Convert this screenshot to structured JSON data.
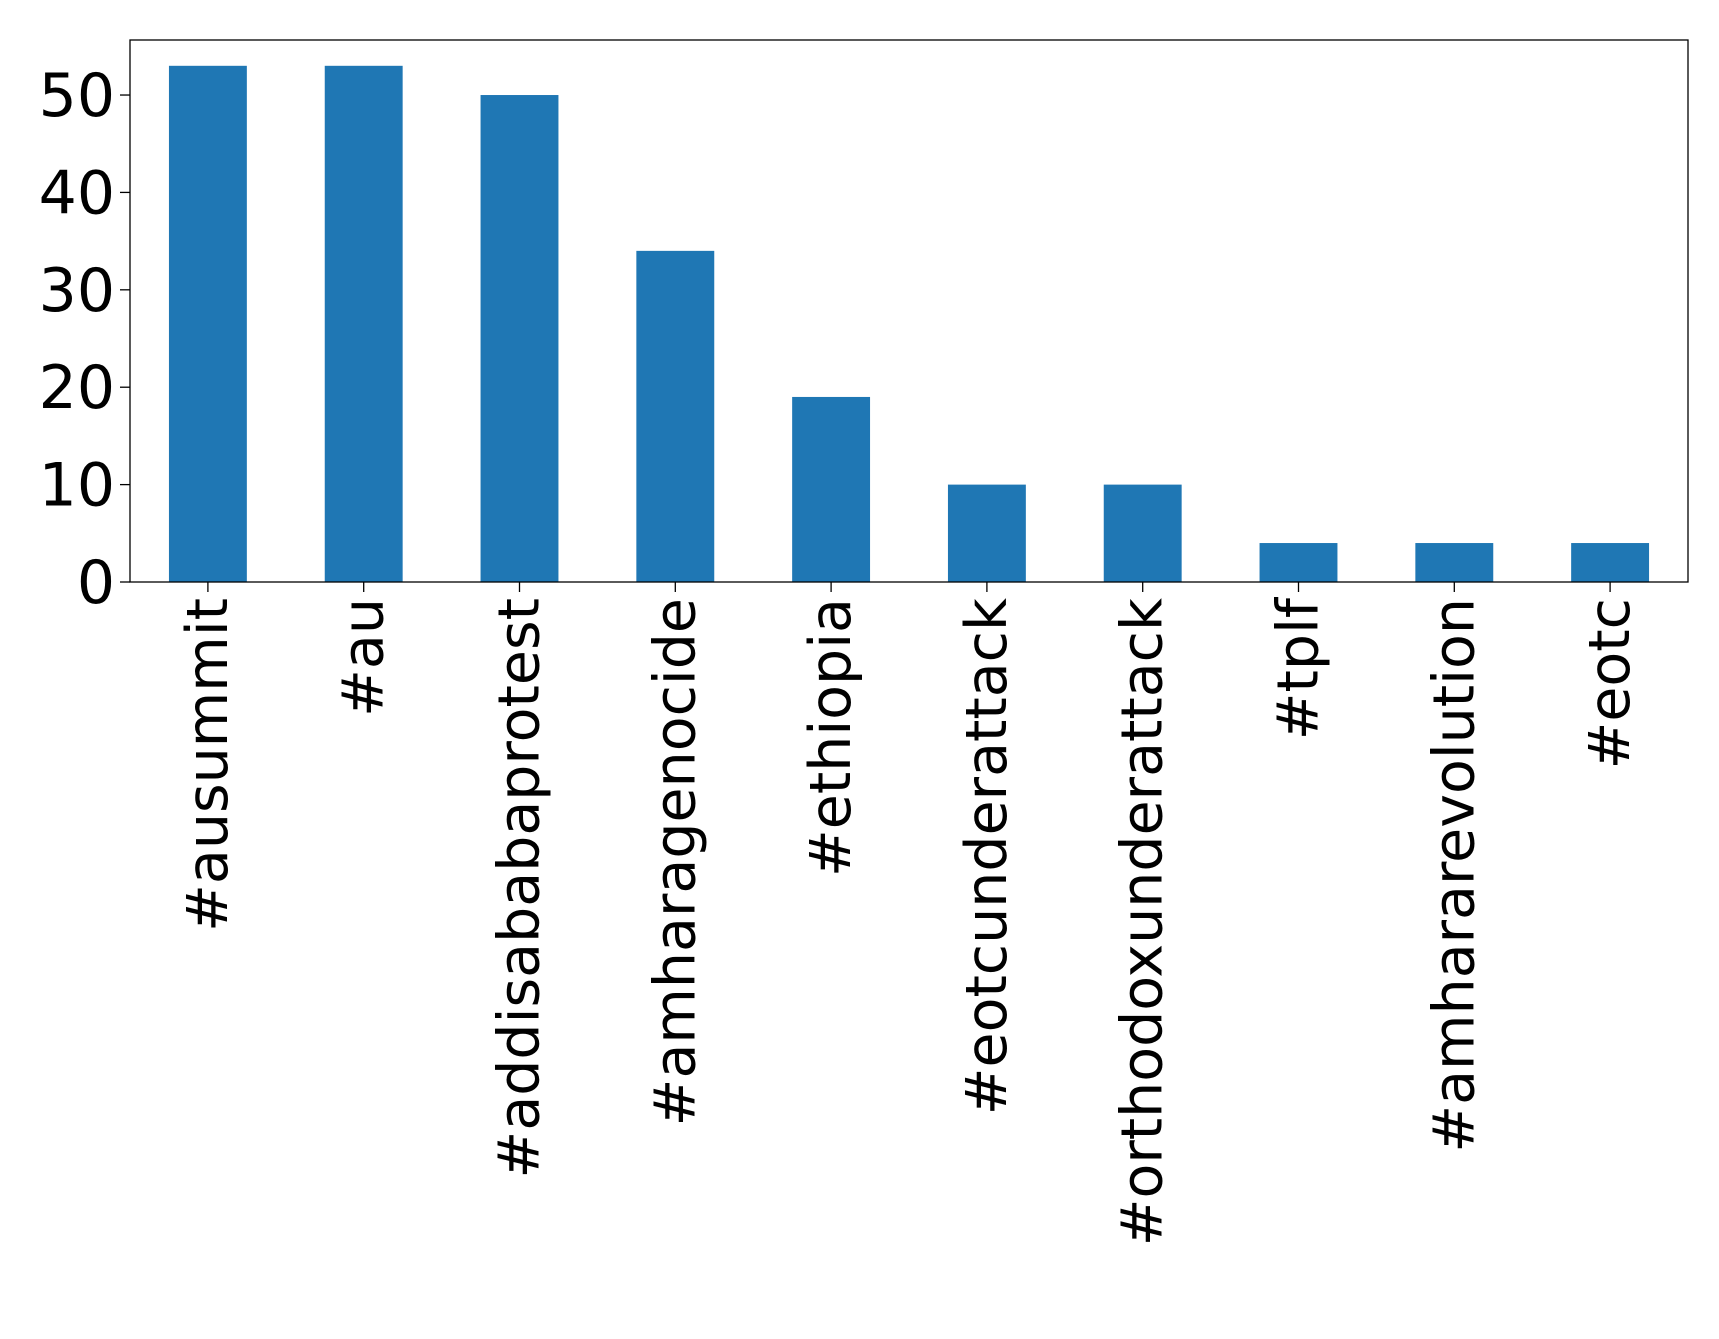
{
  "chart_data": {
    "type": "bar",
    "title": "",
    "xlabel": "",
    "ylabel": "",
    "categories": [
      "#ausummit",
      "#au",
      "#addisababaprotest",
      "#amharagenocide",
      "#ethiopia",
      "#eotcunderattack",
      "#orthodoxunderattack",
      "#tplf",
      "#amhararevolution",
      "#eotc"
    ],
    "values": [
      53,
      53,
      50,
      34,
      19,
      10,
      10,
      4,
      4,
      4
    ],
    "ylim": [
      0,
      55.65
    ],
    "yticks": [
      0,
      10,
      20,
      30,
      40,
      50
    ],
    "grid": false,
    "legend": "none",
    "bar_color": "#1f77b4",
    "axis_color": "#000000"
  }
}
